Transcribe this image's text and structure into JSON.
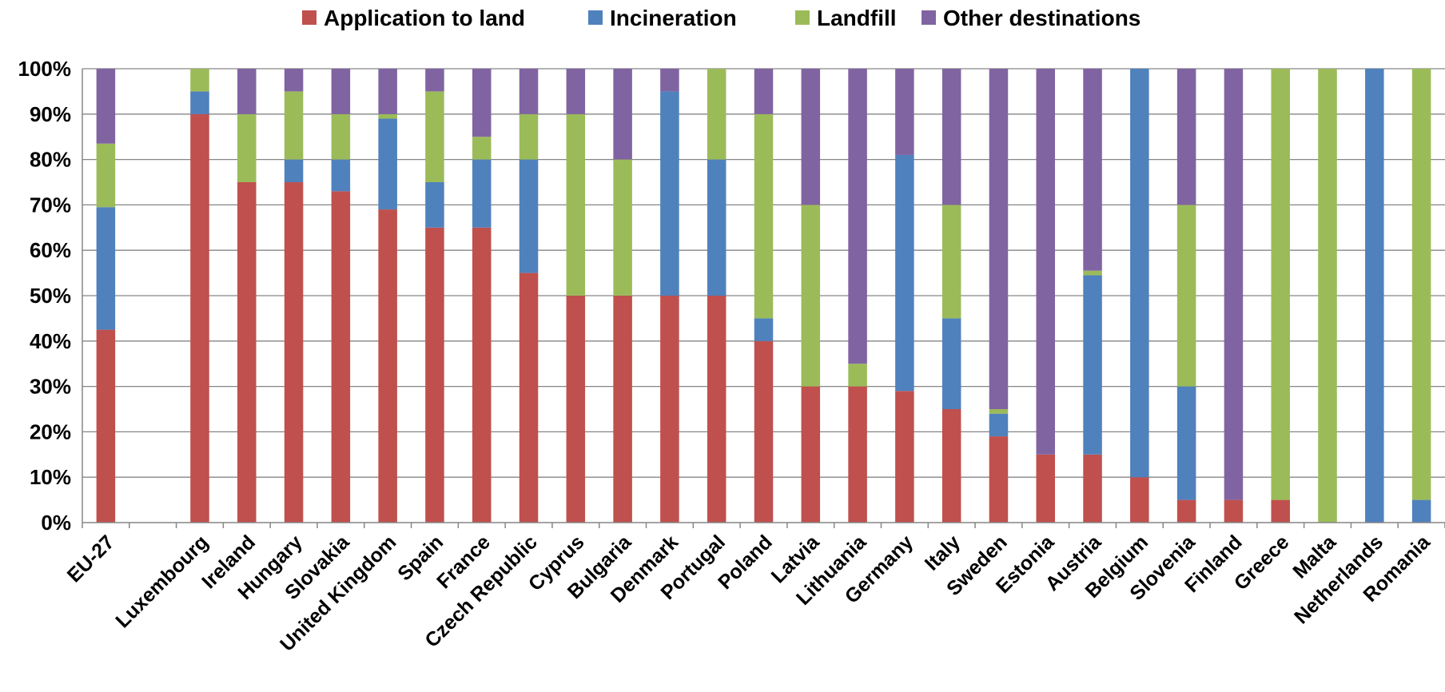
{
  "chart_data": {
    "type": "bar",
    "stacked": true,
    "title": "",
    "xlabel": "",
    "ylabel": "",
    "ylim": [
      0,
      100
    ],
    "y_ticks": [
      "0%",
      "10%",
      "20%",
      "30%",
      "40%",
      "50%",
      "60%",
      "70%",
      "80%",
      "90%",
      "100%"
    ],
    "grid": true,
    "legend_position": "top-center",
    "categories": [
      "EU-27",
      "",
      "Luxembourg",
      "Ireland",
      "Hungary",
      "Slovakia",
      "United Kingdom",
      "Spain",
      "France",
      "Czech Republic",
      "Cyprus",
      "Bulgaria",
      "Denmark",
      "Portugal",
      "Poland",
      "Latvia",
      "Lithuania",
      "Germany",
      "Italy",
      "Sweden",
      "Estonia",
      "Austria",
      "Belgium",
      "Slovenia",
      "Finland",
      "Greece",
      "Malta",
      "Netherlands",
      "Romania"
    ],
    "series": [
      {
        "name": "Application to land",
        "color": "#c0504d",
        "values": [
          42.5,
          0,
          90,
          75,
          75,
          73,
          69,
          65,
          65,
          55,
          50,
          50,
          50,
          50,
          40,
          30,
          30,
          29,
          25,
          19,
          15,
          15,
          10,
          5,
          5,
          5,
          0,
          0,
          0
        ]
      },
      {
        "name": "Incineration",
        "color": "#4f81bd",
        "values": [
          27,
          0,
          5,
          0,
          5,
          7,
          20,
          10,
          15,
          25,
          0,
          0,
          45,
          30,
          5,
          0,
          0,
          52,
          20,
          5,
          0,
          39.5,
          90,
          25,
          0,
          0,
          0,
          100,
          5
        ]
      },
      {
        "name": "Landfill",
        "color": "#9bbb59",
        "values": [
          14,
          0,
          5,
          15,
          15,
          10,
          1,
          20,
          5,
          10,
          40,
          30,
          0,
          20,
          45,
          40,
          5,
          0,
          25,
          1,
          0,
          1,
          0,
          40,
          0,
          95,
          100,
          0,
          95
        ]
      },
      {
        "name": "Other destinations",
        "color": "#8064a2",
        "values": [
          16.5,
          0,
          0,
          10,
          5,
          10,
          10,
          5,
          15,
          10,
          10,
          20,
          5,
          0,
          10,
          30,
          65,
          19,
          30,
          75,
          85,
          44.5,
          0,
          30,
          95,
          0,
          0,
          0,
          0
        ]
      }
    ]
  }
}
